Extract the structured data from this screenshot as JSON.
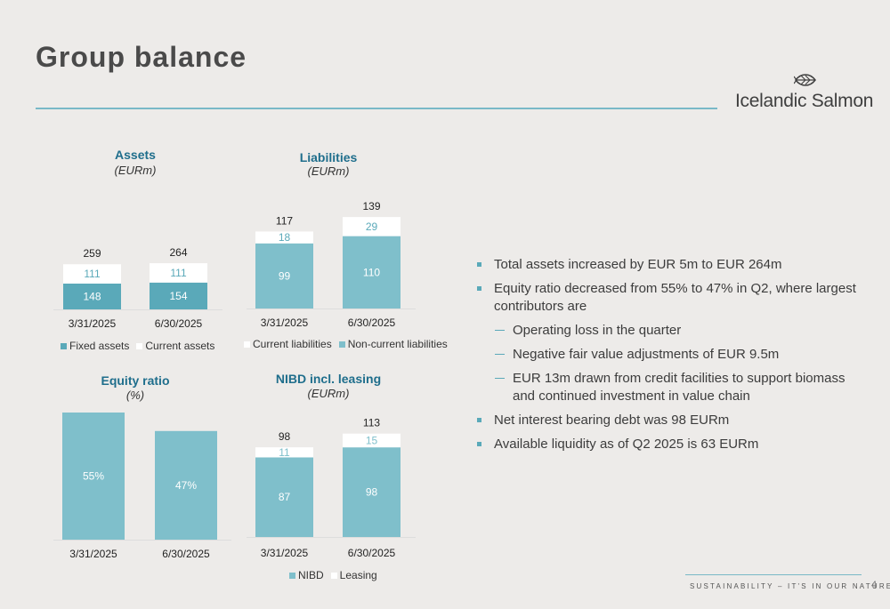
{
  "header": {
    "title": "Group balance"
  },
  "logo": {
    "text": "Icelandic Salmon",
    "icon": "salmon-leaf-icon"
  },
  "colors": {
    "teal": "#5aa9b9",
    "light_teal": "#7fbfcb",
    "white_bar": "#ffffff",
    "accent_title": "#1f6e8c"
  },
  "chart_data": [
    {
      "type": "bar",
      "stacked": true,
      "title": "Assets",
      "subtitle": "(EURm)",
      "categories": [
        "3/31/2025",
        "6/30/2025"
      ],
      "series": [
        {
          "name": "Fixed assets",
          "values": [
            148,
            154
          ]
        },
        {
          "name": "Current assets",
          "values": [
            111,
            111
          ]
        }
      ],
      "totals": [
        259,
        264
      ],
      "legend": "bottom"
    },
    {
      "type": "bar",
      "stacked": true,
      "title": "Liabilities",
      "subtitle": "(EURm)",
      "categories": [
        "3/31/2025",
        "6/30/2025"
      ],
      "series": [
        {
          "name": "Non-current liabilities",
          "values": [
            99,
            110
          ]
        },
        {
          "name": "Current liabilities",
          "values": [
            18,
            29
          ]
        }
      ],
      "totals": [
        117,
        139
      ],
      "legend": "bottom"
    },
    {
      "type": "bar",
      "stacked": false,
      "title": "Equity ratio",
      "subtitle": "(%)",
      "categories": [
        "3/31/2025",
        "6/30/2025"
      ],
      "values": [
        55,
        47
      ],
      "value_labels": [
        "55%",
        "47%"
      ]
    },
    {
      "type": "bar",
      "stacked": true,
      "title": "NIBD incl. leasing",
      "subtitle": "(EURm)",
      "categories": [
        "3/31/2025",
        "6/30/2025"
      ],
      "series": [
        {
          "name": "NIBD",
          "values": [
            87,
            98
          ]
        },
        {
          "name": "Leasing",
          "values": [
            11,
            15
          ]
        }
      ],
      "totals": [
        98,
        113
      ],
      "legend": "bottom"
    }
  ],
  "bullets": [
    {
      "level": 1,
      "text": "Total assets increased by EUR 5m to EUR 264m"
    },
    {
      "level": 1,
      "text": "Equity ratio decreased from 55% to 47% in Q2, where largest contributors are"
    },
    {
      "level": 2,
      "text": "Operating loss in the quarter"
    },
    {
      "level": 2,
      "text": "Negative fair value adjustments of EUR 9.5m"
    },
    {
      "level": 2,
      "text": "EUR 13m drawn from credit facilities to support biomass and continued investment in value chain"
    },
    {
      "level": 1,
      "text": "Net interest bearing debt was 98 EURm"
    },
    {
      "level": 1,
      "text": "Available liquidity as of Q2 2025 is 63 EURm"
    }
  ],
  "footer": {
    "tagline": "SUSTAINABILITY – IT'S IN OUR NATURE",
    "page_number": "4"
  }
}
